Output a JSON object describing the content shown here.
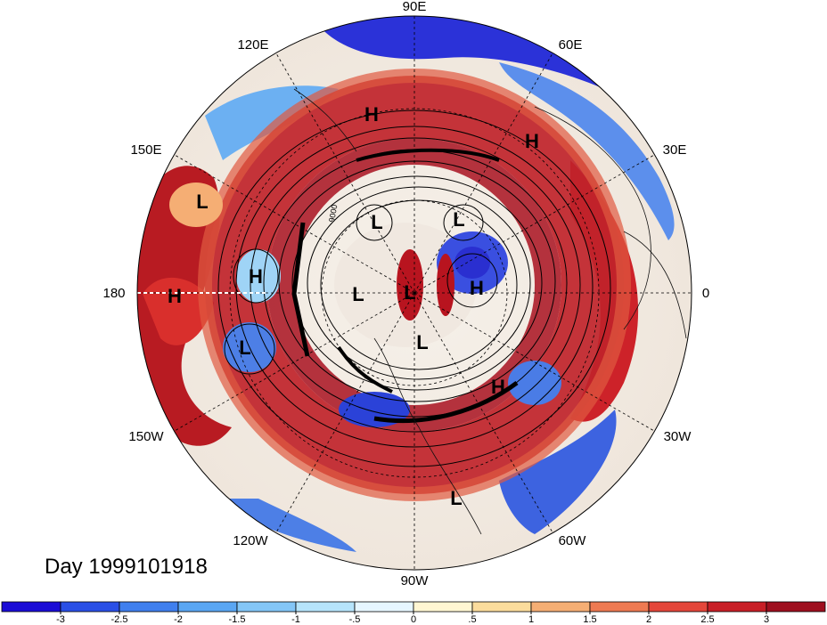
{
  "title": "Day 1999101918",
  "longitude_labels": [
    "90E",
    "120E",
    "60E",
    "150E",
    "30E",
    "180",
    "0",
    "150W",
    "30W",
    "120W",
    "60W",
    "90W"
  ],
  "pressure_systems": [
    "H",
    "H",
    "L",
    "L",
    "L",
    "H",
    "H",
    "L",
    "L",
    "H",
    "L",
    "L",
    "H",
    "L"
  ],
  "colorbar": {
    "tick_labels": [
      "-3",
      "-2.5",
      "-2",
      "-1.5",
      "-1",
      "-.5",
      "0",
      ".5",
      "1",
      "1.5",
      "2",
      "2.5",
      "3"
    ],
    "colors": [
      "#1a0cd6",
      "#2a4fe6",
      "#3f7fee",
      "#5aa6f3",
      "#84c6f7",
      "#b6e4fb",
      "#e6f6ff",
      "#fff6d2",
      "#fbdc9c",
      "#f5ae74",
      "#ee7a52",
      "#e4463a",
      "#c81e26",
      "#9e0f1e"
    ]
  },
  "contour_label": "9000"
}
